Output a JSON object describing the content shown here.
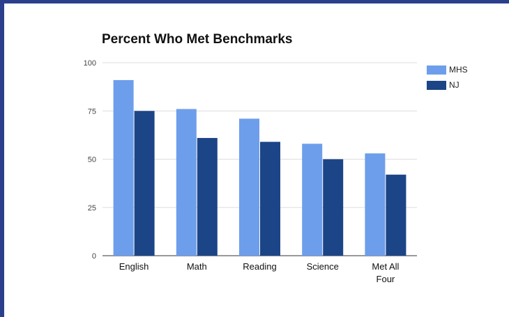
{
  "chart_data": {
    "type": "bar",
    "title": "Percent Who Met Benchmarks",
    "xlabel": "",
    "ylabel": "",
    "categories": [
      "English",
      "Math",
      "Reading",
      "Science",
      "Met All Four"
    ],
    "series": [
      {
        "name": "MHS",
        "values": [
          91,
          76,
          71,
          58,
          53
        ],
        "color": "#6d9eeb"
      },
      {
        "name": "NJ",
        "values": [
          75,
          61,
          59,
          50,
          42
        ],
        "color": "#1c4587"
      }
    ],
    "ylim": [
      0,
      100
    ],
    "yticks": [
      0,
      25,
      50,
      75,
      100
    ],
    "grid": true,
    "legend_position": "right"
  }
}
